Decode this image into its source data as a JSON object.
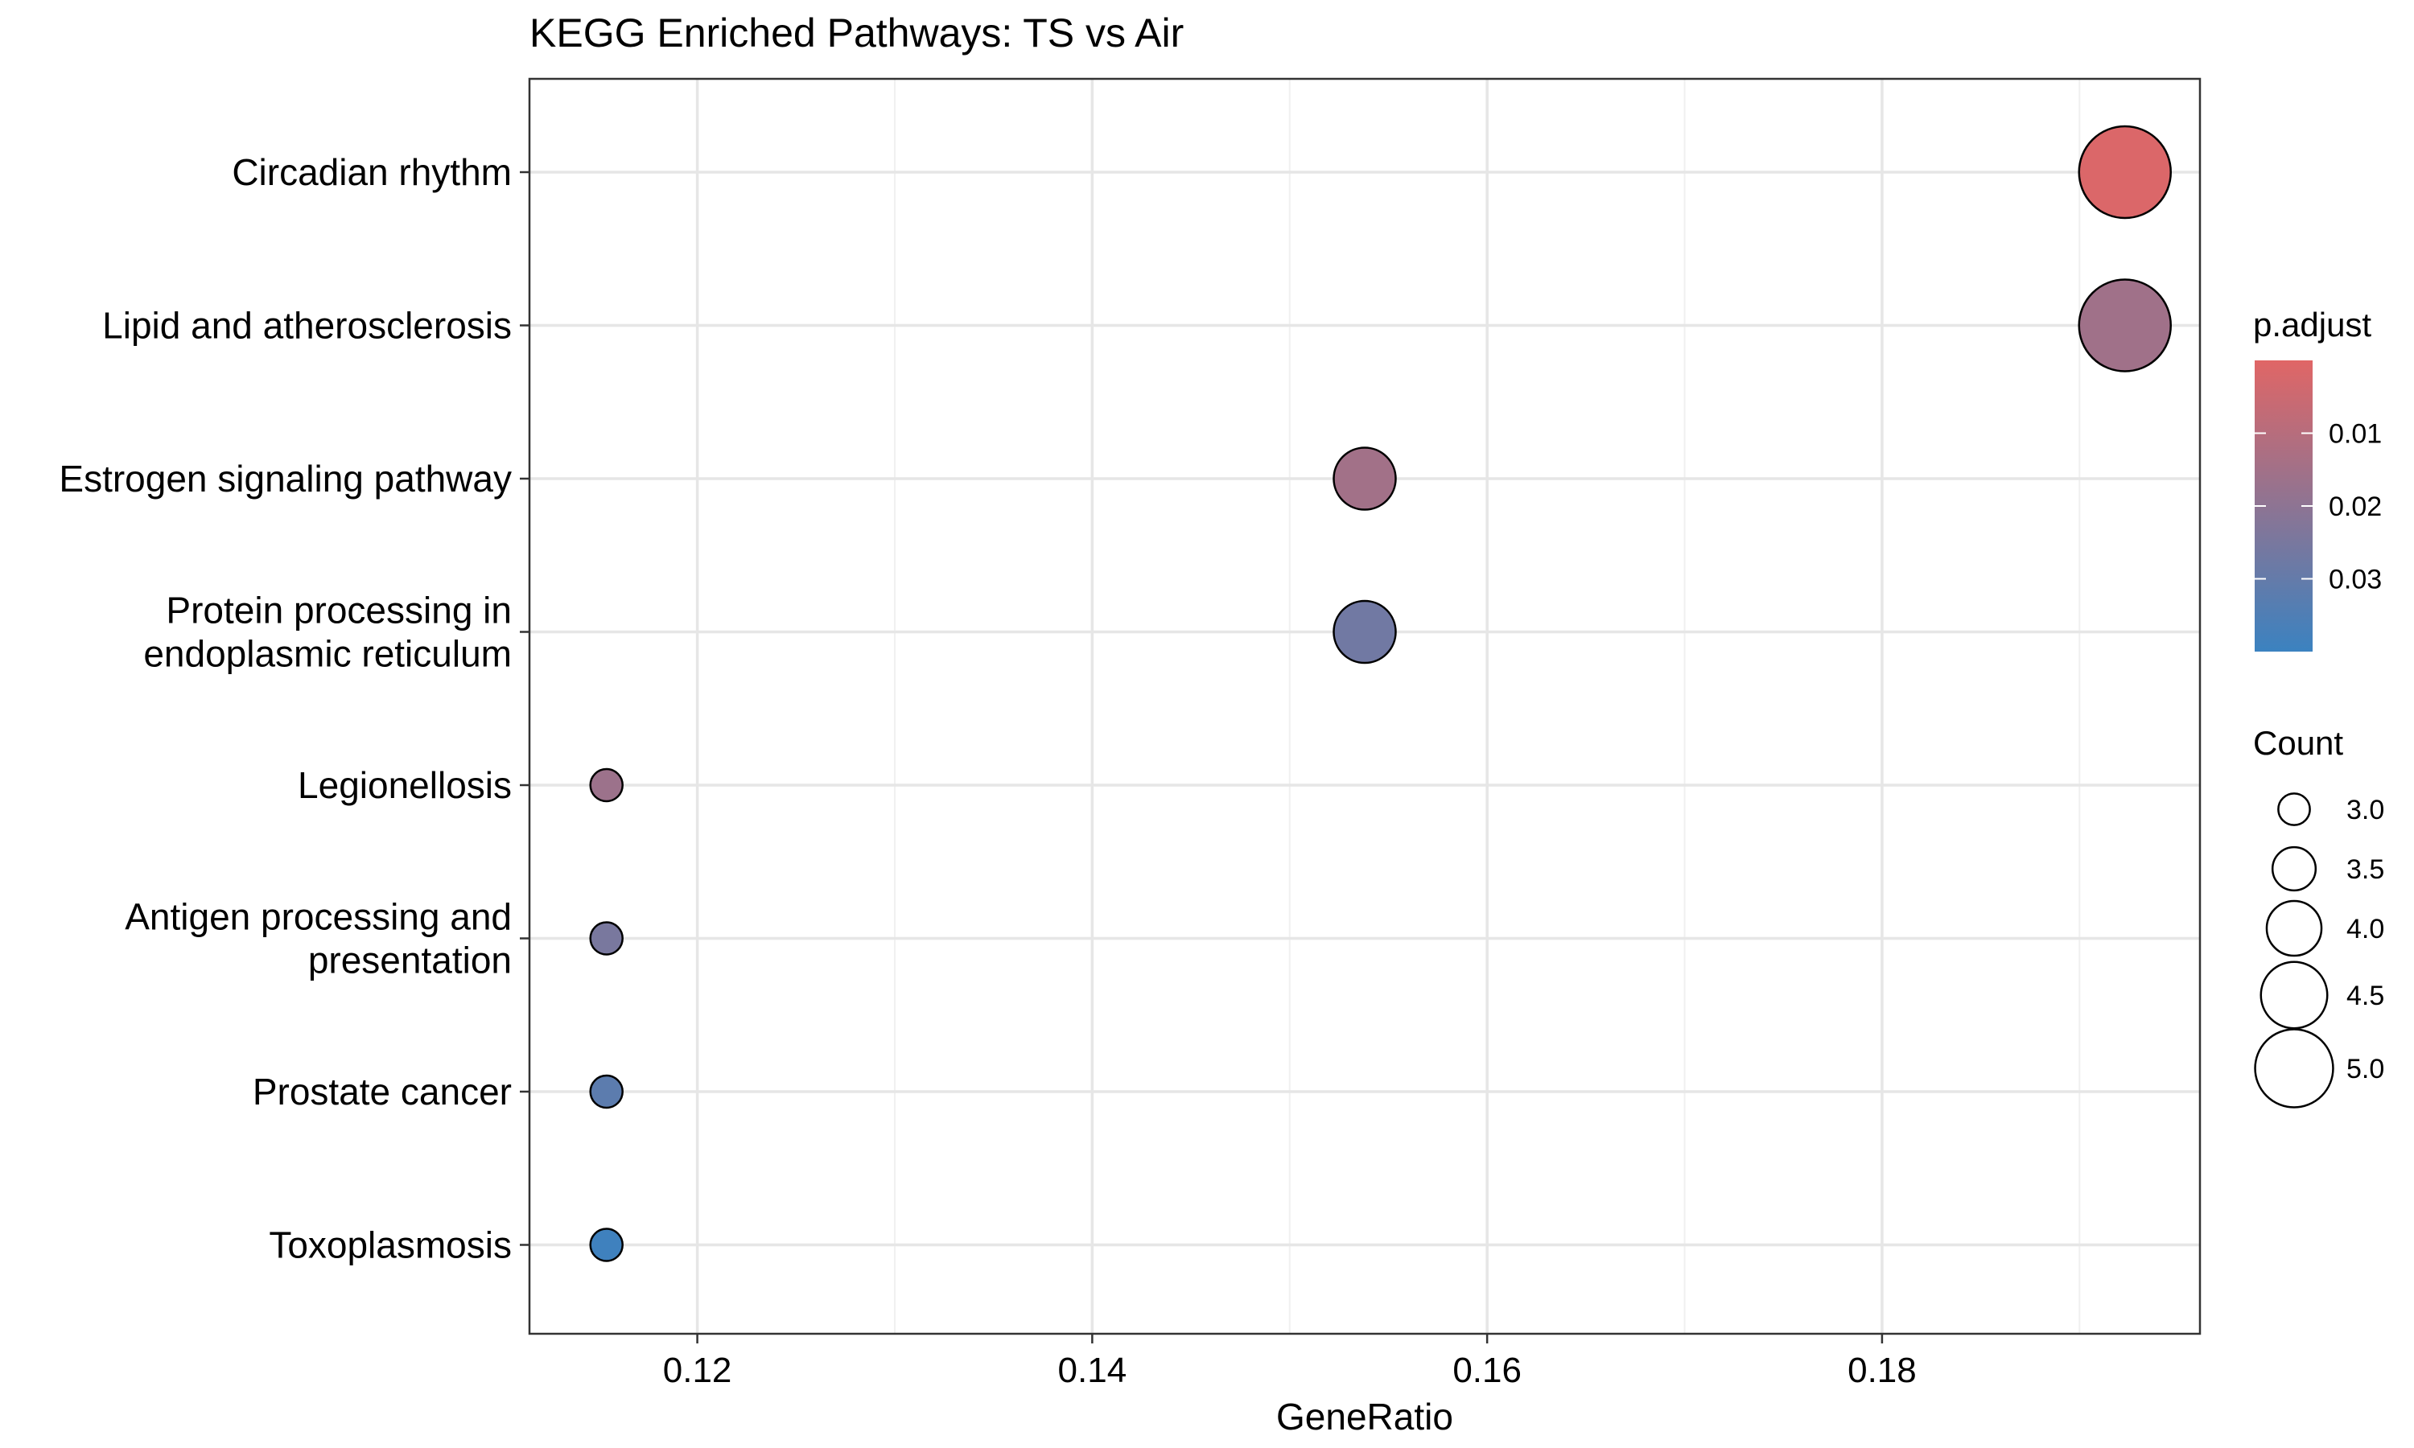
{
  "chart_data": {
    "type": "scatter",
    "title": "KEGG Enriched Pathways: TS vs Air",
    "xlabel": "GeneRatio",
    "ylabel": "",
    "xlim": [
      0.1115,
      0.1961
    ],
    "xticks": [
      0.12,
      0.14,
      0.16,
      0.18
    ],
    "xtick_labels": [
      "0.12",
      "0.14",
      "0.16",
      "0.18"
    ],
    "categories": [
      "Circadian rhythm",
      "Lipid and atherosclerosis",
      "Estrogen signaling pathway",
      "Protein processing in\nendoplasmic reticulum",
      "Legionellosis",
      "Antigen processing and\npresentation",
      "Prostate cancer",
      "Toxoplasmosis"
    ],
    "points": [
      {
        "y": "Circadian rhythm",
        "x": 0.1923,
        "count": 5,
        "p_adjust": 0.0012
      },
      {
        "y": "Lipid and atherosclerosis",
        "x": 0.1923,
        "count": 5,
        "p_adjust": 0.0155
      },
      {
        "y": "Estrogen signaling pathway",
        "x": 0.1538,
        "count": 4,
        "p_adjust": 0.015
      },
      {
        "y": "Protein processing in\nendoplasmic reticulum",
        "x": 0.1538,
        "count": 4,
        "p_adjust": 0.027
      },
      {
        "y": "Legionellosis",
        "x": 0.1154,
        "count": 3,
        "p_adjust": 0.0165
      },
      {
        "y": "Antigen processing and\npresentation",
        "x": 0.1154,
        "count": 3,
        "p_adjust": 0.025
      },
      {
        "y": "Prostate cancer",
        "x": 0.1154,
        "count": 3,
        "p_adjust": 0.032
      },
      {
        "y": "Toxoplasmosis",
        "x": 0.1154,
        "count": 3,
        "p_adjust": 0.039
      }
    ],
    "grid": true,
    "color_legend": {
      "title": "p.adjust",
      "range": [
        0.0,
        0.04
      ],
      "ticks": [
        0.01,
        0.02,
        0.03
      ],
      "tick_labels": [
        "0.01",
        "0.02",
        "0.03"
      ],
      "low_color": "#e06666",
      "high_color": "#3b82c0"
    },
    "size_legend": {
      "title": "Count",
      "values": [
        3.0,
        3.5,
        4.0,
        4.5,
        5.0
      ],
      "labels": [
        "3.0",
        "3.5",
        "4.0",
        "4.5",
        "5.0"
      ]
    },
    "legend_position": "right"
  }
}
